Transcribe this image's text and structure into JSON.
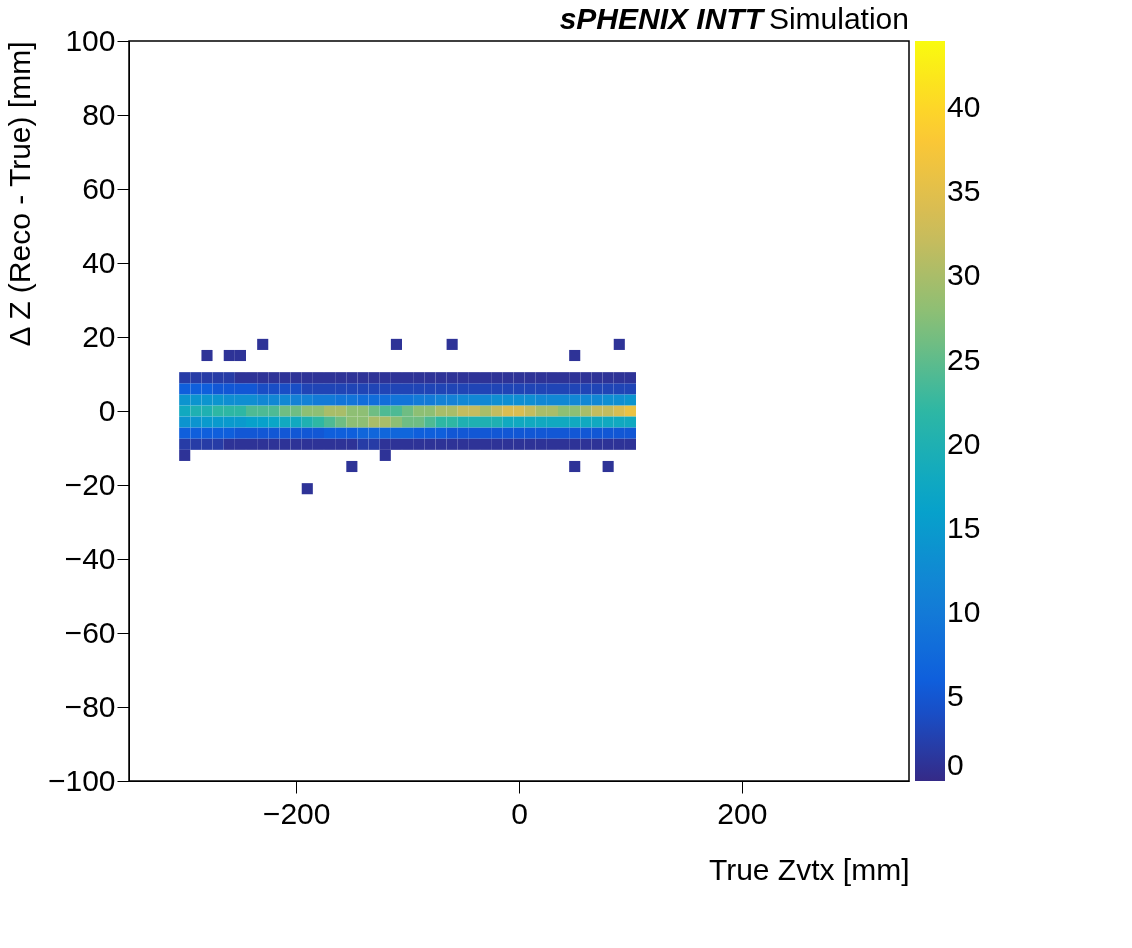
{
  "chart_data": {
    "type": "scatter",
    "title": "sPHENIX INTT",
    "subtitle": "Simulation",
    "xlabel": "True Zvtx [mm]",
    "ylabel": "Δ Z (Reco - True) [mm]",
    "marker": "square",
    "grid": false,
    "xlim": [
      -350,
      350
    ],
    "xticks": [
      -200,
      0,
      200
    ],
    "ylim": [
      -100,
      100
    ],
    "yticks": [
      -100,
      -80,
      -60,
      -40,
      -20,
      0,
      20,
      40,
      60,
      80,
      100
    ],
    "clim": [
      0,
      44
    ],
    "cticks": [
      0,
      5,
      10,
      15,
      20,
      25,
      30,
      35,
      40
    ],
    "x": [
      -300,
      -290,
      -280,
      -270,
      -260,
      -250,
      -240,
      -230,
      -220,
      -210,
      -200,
      -190,
      -180,
      -170,
      -160,
      -150,
      -140,
      -130,
      -120,
      -110,
      -100,
      -90,
      -80,
      -70,
      -60,
      -50,
      -40,
      -30,
      -20,
      -10,
      0,
      10,
      20,
      30,
      40,
      50,
      60,
      70,
      80,
      90,
      100,
      -300,
      -290,
      -280,
      -270,
      -260,
      -250,
      -240,
      -230,
      -220,
      -210,
      -200,
      -190,
      -180,
      -170,
      -160,
      -150,
      -140,
      -130,
      -120,
      -110,
      -100,
      -90,
      -80,
      -70,
      -60,
      -50,
      -40,
      -30,
      -20,
      -10,
      0,
      10,
      20,
      30,
      40,
      50,
      60,
      70,
      80,
      90,
      100,
      -300,
      -290,
      -280,
      -270,
      -260,
      -250,
      -240,
      -230,
      -220,
      -210,
      -200,
      -190,
      -180,
      -170,
      -160,
      -150,
      -140,
      -130,
      -120,
      -110,
      -100,
      -90,
      -80,
      -70,
      -60,
      -50,
      -40,
      -30,
      -20,
      -10,
      0,
      10,
      20,
      30,
      40,
      50,
      60,
      70,
      80,
      90,
      100,
      -300,
      -290,
      -280,
      -270,
      -260,
      -250,
      -240,
      -230,
      -220,
      -210,
      -200,
      -190,
      -180,
      -170,
      -160,
      -150,
      -140,
      -130,
      -120,
      -110,
      -100,
      -90,
      -80,
      -70,
      -60,
      -50,
      -40,
      -30,
      -20,
      -10,
      0,
      10,
      20,
      30,
      40,
      50,
      60,
      70,
      80,
      90,
      100,
      -300,
      -290,
      -280,
      -270,
      -260,
      -250,
      -240,
      -230,
      -220,
      -210,
      -200,
      -190,
      -180,
      -170,
      -160,
      -150,
      -140,
      -130,
      -120,
      -110,
      -100,
      -90,
      -80,
      -70,
      -60,
      -50,
      -40,
      -30,
      -20,
      -10,
      0,
      10,
      20,
      30,
      40,
      50,
      60,
      70,
      80,
      90,
      100,
      -300,
      -290,
      -280,
      -270,
      -260,
      -250,
      -240,
      -230,
      -220,
      -210,
      -200,
      -190,
      -180,
      -170,
      -160,
      -150,
      -140,
      -130,
      -120,
      -110,
      -100,
      -90,
      -80,
      -70,
      -60,
      -50,
      -40,
      -30,
      -20,
      -10,
      0,
      10,
      20,
      30,
      40,
      50,
      60,
      70,
      80,
      90,
      100,
      -300,
      -290,
      -280,
      -270,
      -260,
      -250,
      -240,
      -230,
      -220,
      -210,
      -200,
      -190,
      -180,
      -170,
      -160,
      -150,
      -140,
      -130,
      -120,
      -110,
      -100,
      -90,
      -80,
      -70,
      -60,
      -50,
      -40,
      -30,
      -20,
      -10,
      0,
      10,
      20,
      30,
      40,
      50,
      60,
      70,
      80,
      90,
      100,
      -190,
      -110,
      -60,
      90,
      -230,
      -260,
      -280,
      50,
      50,
      80,
      -120,
      -150,
      -300,
      -250
    ],
    "values": [
      0,
      0,
      0,
      0,
      0,
      0,
      0,
      0,
      0,
      0,
      0,
      0,
      0,
      0,
      0,
      0,
      0,
      0,
      0,
      0,
      0,
      0,
      0,
      0,
      0,
      0,
      0,
      0,
      0,
      0,
      0,
      0,
      0,
      0,
      0,
      0,
      0,
      0,
      0,
      0,
      0,
      -3,
      -3,
      -3,
      -3,
      -3,
      -3,
      -3,
      -3,
      -3,
      -3,
      -3,
      -3,
      -3,
      -3,
      -3,
      -3,
      -3,
      -3,
      -3,
      -3,
      -3,
      -3,
      -3,
      -3,
      -3,
      -3,
      -3,
      -3,
      -3,
      -3,
      -3,
      -3,
      -3,
      -3,
      -3,
      -3,
      -3,
      -3,
      -3,
      -3,
      -3,
      3,
      3,
      3,
      3,
      3,
      3,
      3,
      3,
      3,
      3,
      3,
      3,
      3,
      3,
      3,
      3,
      3,
      3,
      3,
      3,
      3,
      3,
      3,
      3,
      3,
      3,
      3,
      3,
      3,
      3,
      3,
      3,
      3,
      3,
      3,
      3,
      3,
      3,
      3,
      3,
      3,
      -6,
      -6,
      -6,
      -6,
      -6,
      -6,
      -6,
      -6,
      -6,
      -6,
      -6,
      -6,
      -6,
      -6,
      -6,
      -6,
      -6,
      -6,
      -6,
      -6,
      -6,
      -6,
      -6,
      -6,
      -6,
      -6,
      -6,
      -6,
      -6,
      -6,
      -6,
      -6,
      -6,
      -6,
      -6,
      -6,
      -6,
      -6,
      -6,
      -6,
      -6,
      6,
      6,
      6,
      6,
      6,
      6,
      6,
      6,
      6,
      6,
      6,
      6,
      6,
      6,
      6,
      6,
      6,
      6,
      6,
      6,
      6,
      6,
      6,
      6,
      6,
      6,
      6,
      6,
      6,
      6,
      6,
      6,
      6,
      6,
      6,
      6,
      6,
      6,
      6,
      6,
      6,
      -9,
      -9,
      -9,
      -9,
      -9,
      -9,
      -9,
      -9,
      -9,
      -9,
      -9,
      -9,
      -9,
      -9,
      -9,
      -9,
      -9,
      -9,
      -9,
      -9,
      -9,
      -9,
      -9,
      -9,
      -9,
      -9,
      -9,
      -9,
      -9,
      -9,
      -9,
      -9,
      -9,
      -9,
      -9,
      -9,
      -9,
      -9,
      -9,
      -9,
      -9,
      9,
      9,
      9,
      9,
      9,
      9,
      9,
      9,
      9,
      9,
      9,
      9,
      9,
      9,
      9,
      9,
      9,
      9,
      9,
      9,
      9,
      9,
      9,
      9,
      9,
      9,
      9,
      9,
      9,
      9,
      9,
      9,
      9,
      9,
      9,
      9,
      9,
      9,
      9,
      9,
      9,
      -21,
      18,
      18,
      18,
      18,
      15,
      15,
      15,
      -15,
      -15,
      -12,
      -15,
      -12,
      15
    ],
    "cvalues": [
      18,
      20,
      20,
      22,
      22,
      22,
      24,
      24,
      24,
      26,
      26,
      28,
      28,
      30,
      30,
      28,
      28,
      26,
      24,
      24,
      26,
      28,
      28,
      30,
      30,
      32,
      32,
      30,
      32,
      34,
      34,
      32,
      30,
      30,
      28,
      28,
      30,
      32,
      32,
      34,
      36,
      14,
      14,
      15,
      15,
      15,
      15,
      16,
      16,
      17,
      18,
      18,
      20,
      22,
      24,
      26,
      28,
      28,
      30,
      30,
      28,
      26,
      26,
      24,
      22,
      22,
      20,
      20,
      20,
      20,
      18,
      18,
      18,
      18,
      18,
      18,
      18,
      18,
      18,
      18,
      18,
      18,
      14,
      14,
      14,
      14,
      13,
      13,
      13,
      12,
      12,
      12,
      11,
      11,
      10,
      10,
      9,
      9,
      8,
      8,
      8,
      9,
      9,
      10,
      10,
      11,
      11,
      12,
      12,
      12,
      13,
      13,
      13,
      13,
      12,
      12,
      12,
      12,
      12,
      12,
      13,
      13,
      14,
      6,
      6,
      6,
      6,
      6,
      5,
      5,
      5,
      5,
      5,
      5,
      5,
      5,
      6,
      6,
      6,
      7,
      7,
      7,
      7,
      7,
      6,
      6,
      6,
      5,
      5,
      5,
      5,
      5,
      5,
      5,
      5,
      5,
      5,
      5,
      5,
      5,
      5,
      5,
      5,
      5,
      6,
      6,
      6,
      5,
      5,
      5,
      5,
      4,
      4,
      4,
      4,
      3,
      3,
      3,
      3,
      3,
      3,
      3,
      3,
      3,
      3,
      3,
      3,
      3,
      3,
      3,
      3,
      3,
      3,
      3,
      3,
      3,
      3,
      3,
      3,
      3,
      3,
      3,
      3,
      3,
      3,
      2,
      2,
      2,
      2,
      1,
      1,
      1,
      1,
      1,
      1,
      1,
      1,
      1,
      1,
      1,
      1,
      2,
      2,
      1,
      1,
      1,
      1,
      1,
      1,
      1,
      1,
      1,
      1,
      1,
      1,
      1,
      1,
      1,
      1,
      1,
      1,
      1,
      1,
      1,
      1,
      1,
      2,
      2,
      2,
      2,
      2,
      1,
      1,
      1,
      1,
      1,
      1,
      1,
      1,
      1,
      1,
      1,
      1,
      1,
      1,
      1,
      1,
      1,
      1,
      1,
      1,
      1,
      1,
      1,
      1,
      1,
      1,
      1,
      1,
      1,
      1,
      1,
      1,
      1,
      1,
      1,
      1,
      1,
      1,
      1,
      1,
      1,
      1,
      1,
      1,
      1,
      1,
      1,
      1,
      1,
      1
    ]
  }
}
